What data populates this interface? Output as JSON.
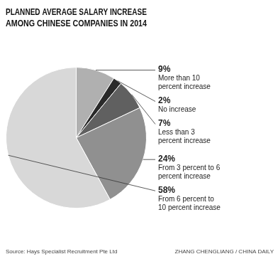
{
  "chart_data": {
    "type": "pie",
    "title": "PLANNED AVERAGE SALARY INCREASE\nAMONG CHINESE COMPANIES IN 2014",
    "categories": [
      "More than 10\npercent increase",
      "No increase",
      "Less than 3\npercent increase",
      "From 3 percent to 6\npercent increase",
      "From 6 percent to\n10 percent increase"
    ],
    "values": [
      9,
      2,
      7,
      24,
      58
    ],
    "value_labels": [
      "9%",
      "2%",
      "7%",
      "24%",
      "58%"
    ],
    "colors": [
      "#b0b0b0",
      "#2a2a2a",
      "#606060",
      "#909090",
      "#d8d8d8"
    ],
    "data_labels": true,
    "annotations": [
      "Source: Hays Specialist Recruitment Pte Ltd",
      "ZHANG CHENGLIANG / CHINA DAILY"
    ]
  }
}
